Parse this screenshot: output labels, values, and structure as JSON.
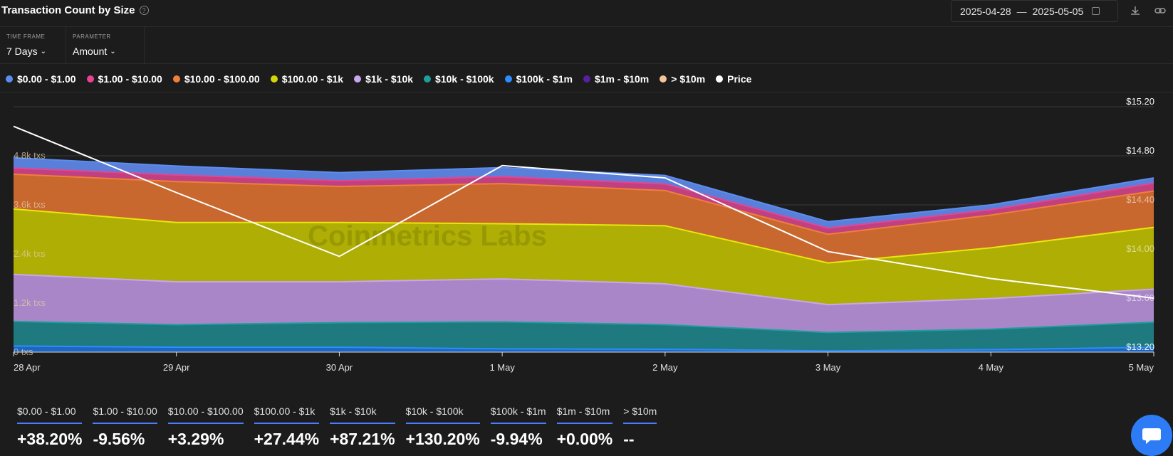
{
  "header": {
    "title": "Transaction Count by Size",
    "help_icon": "?",
    "date_start": "2025-04-28",
    "date_sep": "—",
    "date_end": "2025-05-05"
  },
  "filters": {
    "timeframe_label": "TIME FRAME",
    "timeframe_value": "7 Days",
    "parameter_label": "PARAMETER",
    "parameter_value": "Amount"
  },
  "legend": [
    {
      "label": "$0.00 - $1.00",
      "color": "#5b8def"
    },
    {
      "label": "$1.00 - $10.00",
      "color": "#e84393"
    },
    {
      "label": "$10.00 - $100.00",
      "color": "#f07f3c"
    },
    {
      "label": "$100.00 - $1k",
      "color": "#d4d40a"
    },
    {
      "label": "$1k - $10k",
      "color": "#c9a6f2"
    },
    {
      "label": "$10k - $100k",
      "color": "#1f9e9e"
    },
    {
      "label": "$100k - $1m",
      "color": "#2d8cff"
    },
    {
      "label": "$1m - $10m",
      "color": "#5a1fa0"
    },
    {
      "label": "> $10m",
      "color": "#f2c49b"
    },
    {
      "label": "Price",
      "color": "#ffffff"
    }
  ],
  "chart_data": {
    "type": "area",
    "stacked": true,
    "x": [
      "28 Apr",
      "29 Apr",
      "30 Apr",
      "1 May",
      "2 May",
      "3 May",
      "4 May",
      "5 May"
    ],
    "series": [
      {
        "name": "$100k - $1m",
        "color": "#2d8cff",
        "fill": "#1e66c0",
        "values": [
          150,
          120,
          120,
          80,
          70,
          30,
          60,
          120
        ]
      },
      {
        "name": "$10k - $100k",
        "color": "#1f9e9e",
        "fill": "#1f7a80",
        "values": [
          600,
          550,
          600,
          660,
          600,
          450,
          500,
          610
        ]
      },
      {
        "name": "$1k - $10k",
        "color": "#c9a6f2",
        "fill": "#a986c8",
        "values": [
          1150,
          1050,
          1000,
          1050,
          1000,
          680,
          750,
          810
        ]
      },
      {
        "name": "$100.00 - $1k",
        "color": "#e8e80a",
        "fill": "#aeae04",
        "values": [
          1600,
          1450,
          1450,
          1350,
          1420,
          1020,
          1240,
          1510
        ]
      },
      {
        "name": "$10.00 - $100.00",
        "color": "#f07f3c",
        "fill": "#c8682e",
        "values": [
          850,
          1000,
          880,
          980,
          860,
          700,
          800,
          890
        ]
      },
      {
        "name": "$1.00 - $10.00",
        "color": "#e84393",
        "fill": "#c04080",
        "values": [
          150,
          160,
          140,
          170,
          160,
          150,
          130,
          190
        ]
      },
      {
        "name": "$0.00 - $1.00",
        "color": "#5b8def",
        "fill": "#5a7fd8",
        "values": [
          250,
          220,
          200,
          220,
          210,
          160,
          120,
          130
        ]
      }
    ],
    "price": {
      "name": "Price",
      "color": "#ffffff",
      "values": [
        15.04,
        14.5,
        13.98,
        14.72,
        14.62,
        14.02,
        13.8,
        13.64
      ]
    },
    "y_left": {
      "ticks": [
        0,
        1200,
        2400,
        3600,
        4800
      ],
      "tick_labels": [
        "0 txs",
        "1.2k txs",
        "2.4k txs",
        "3.6k txs",
        "4.8k txs"
      ],
      "range": [
        0,
        6000
      ]
    },
    "y_right": {
      "ticks": [
        13.2,
        13.6,
        14.0,
        14.4,
        14.8,
        15.2
      ],
      "tick_labels": [
        "$13.20",
        "$13.60",
        "$14.00",
        "$14.40",
        "$14.80",
        "$15.20"
      ],
      "range": [
        13.2,
        15.2
      ]
    },
    "watermark": "Coinmetrics Labs"
  },
  "stats": [
    {
      "label": "$0.00 - $1.00",
      "value": "+38.20%"
    },
    {
      "label": "$1.00 - $10.00",
      "value": "-9.56%"
    },
    {
      "label": "$10.00 - $100.00",
      "value": "+3.29%"
    },
    {
      "label": "$100.00 - $1k",
      "value": "+27.44%"
    },
    {
      "label": "$1k - $10k",
      "value": "+87.21%"
    },
    {
      "label": "$10k - $100k",
      "value": "+130.20%"
    },
    {
      "label": "$100k - $1m",
      "value": "-9.94%"
    },
    {
      "label": "$1m - $10m",
      "value": "+0.00%"
    },
    {
      "label": "> $10m",
      "value": "--"
    }
  ]
}
